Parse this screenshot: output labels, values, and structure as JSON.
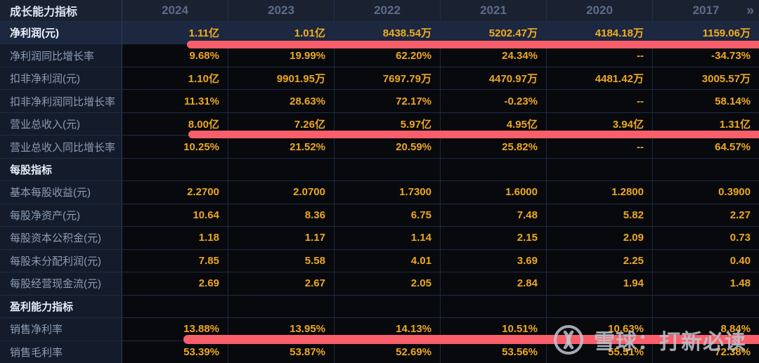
{
  "table": {
    "header": {
      "label": "成长能力指标",
      "years": [
        "2024",
        "2023",
        "2022",
        "2021",
        "2020",
        "2017"
      ],
      "more_icon": "»"
    },
    "rows": [
      {
        "label": "净利润(元)",
        "highlighted": true,
        "underlined": true,
        "values": [
          "1.11亿",
          "1.01亿",
          "8438.54万",
          "5202.47万",
          "4184.18万",
          "1159.06万"
        ]
      },
      {
        "label": "净利润同比增长率",
        "values": [
          "9.68%",
          "19.99%",
          "62.20%",
          "24.34%",
          "--",
          "-34.73%"
        ]
      },
      {
        "label": "扣非净利润(元)",
        "values": [
          "1.10亿",
          "9901.95万",
          "7697.79万",
          "4470.97万",
          "4481.42万",
          "3005.57万"
        ]
      },
      {
        "label": "扣非净利润同比增长率",
        "values": [
          "11.31%",
          "28.63%",
          "72.17%",
          "-0.23%",
          "--",
          "58.14%"
        ]
      },
      {
        "label": "营业总收入(元)",
        "underlined": true,
        "values": [
          "8.00亿",
          "7.26亿",
          "5.97亿",
          "4.95亿",
          "3.94亿",
          "1.31亿"
        ]
      },
      {
        "label": "营业总收入同比增长率",
        "values": [
          "10.25%",
          "21.52%",
          "20.59%",
          "25.82%",
          "--",
          "64.57%"
        ]
      },
      {
        "label": "每股指标",
        "section": true,
        "values": [
          "",
          "",
          "",
          "",
          "",
          ""
        ]
      },
      {
        "label": "基本每股收益(元)",
        "values": [
          "2.2700",
          "2.0700",
          "1.7300",
          "1.6000",
          "1.2800",
          "0.3900"
        ]
      },
      {
        "label": "每股净资产(元)",
        "values": [
          "10.64",
          "8.36",
          "6.75",
          "7.48",
          "5.82",
          "2.27"
        ]
      },
      {
        "label": "每股资本公积金(元)",
        "values": [
          "1.18",
          "1.17",
          "1.14",
          "2.15",
          "2.09",
          "0.73"
        ]
      },
      {
        "label": "每股未分配利润(元)",
        "values": [
          "7.85",
          "5.58",
          "4.01",
          "3.69",
          "2.25",
          "0.40"
        ]
      },
      {
        "label": "每股经营现金流(元)",
        "values": [
          "2.69",
          "2.67",
          "2.05",
          "2.84",
          "1.94",
          "1.48"
        ]
      },
      {
        "label": "盈利能力指标",
        "section": true,
        "values": [
          "",
          "",
          "",
          "",
          "",
          ""
        ]
      },
      {
        "label": "销售净利率",
        "underlined": true,
        "values": [
          "13.88%",
          "13.95%",
          "14.13%",
          "10.51%",
          "10.63%",
          "8.84%"
        ]
      },
      {
        "label": "销售毛利率",
        "values": [
          "53.39%",
          "53.87%",
          "52.69%",
          "53.56%",
          "55.51%",
          "72.38%"
        ]
      }
    ]
  },
  "watermark": {
    "text": "雪球：打新必读"
  },
  "colors": {
    "value_gold": "#EFA81E",
    "annotation_red": "#F85F6A",
    "highlight_row_bg": "#1C2740",
    "header_bg": "#1A2232",
    "label_col_bg": "#141C2C"
  }
}
